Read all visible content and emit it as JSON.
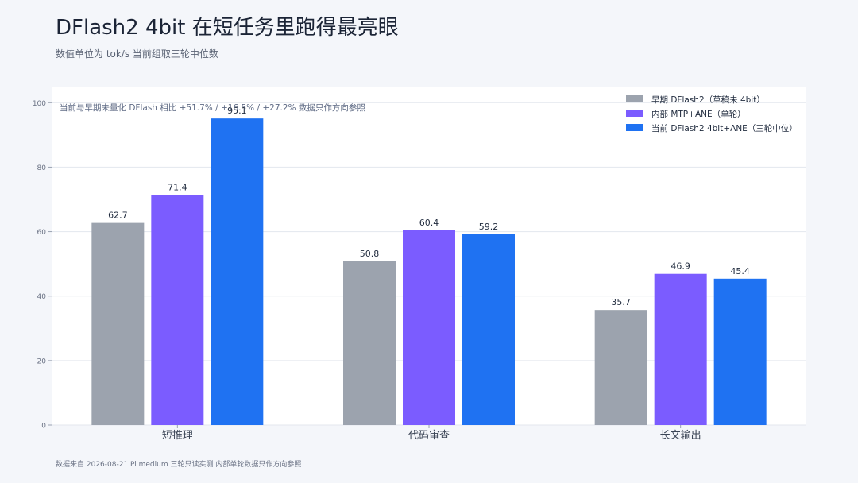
{
  "header": {
    "title": "DFlash2 4bit 在短任务里跑得最亮眼",
    "subtitle": "数值单位为 tok/s  当前组取三轮中位数"
  },
  "footnote": "数据来自 2026-08-21 Pi medium 三轮只读实测  内部单轮数据只作方向参照",
  "colors": {
    "page_background": "#f4f6fa",
    "plot_background": "#ffffff",
    "grid": "#e3e7ee",
    "tick_text": "#6b7385",
    "annotation_text": "#5f6b85"
  },
  "chart_data": {
    "type": "bar",
    "title": "DFlash2 4bit 在短任务里跑得最亮眼",
    "subtitle": "数值单位为 tok/s  当前组取三轮中位数",
    "xlabel": "",
    "ylabel": "",
    "categories": [
      "短推理",
      "代码审查",
      "长文输出"
    ],
    "ylim": [
      0,
      105
    ],
    "yticks": [
      0,
      20,
      40,
      60,
      80,
      100
    ],
    "grid": true,
    "legend_position": "top-right",
    "annotation": "当前与早期未量化 DFlash 相比  +51.7% / +16.5% / +27.2%  数据只作方向参照",
    "series": [
      {
        "name": "早期 DFlash2（草稿未 4bit）",
        "color": "#9ca3ae",
        "values": [
          62.7,
          50.8,
          35.7
        ],
        "labels": [
          "62.7",
          "50.8",
          "35.7"
        ]
      },
      {
        "name": "内部 MTP+ANE（单轮）",
        "color": "#7b5cff",
        "values": [
          71.4,
          60.4,
          46.9
        ],
        "labels": [
          "71.4",
          "60.4",
          "46.9"
        ]
      },
      {
        "name": "当前 DFlash2 4bit+ANE（三轮中位）",
        "color": "#1f72f2",
        "values": [
          95.1,
          59.2,
          45.4
        ],
        "labels": [
          "95.1",
          "59.2",
          "45.4"
        ]
      }
    ]
  }
}
